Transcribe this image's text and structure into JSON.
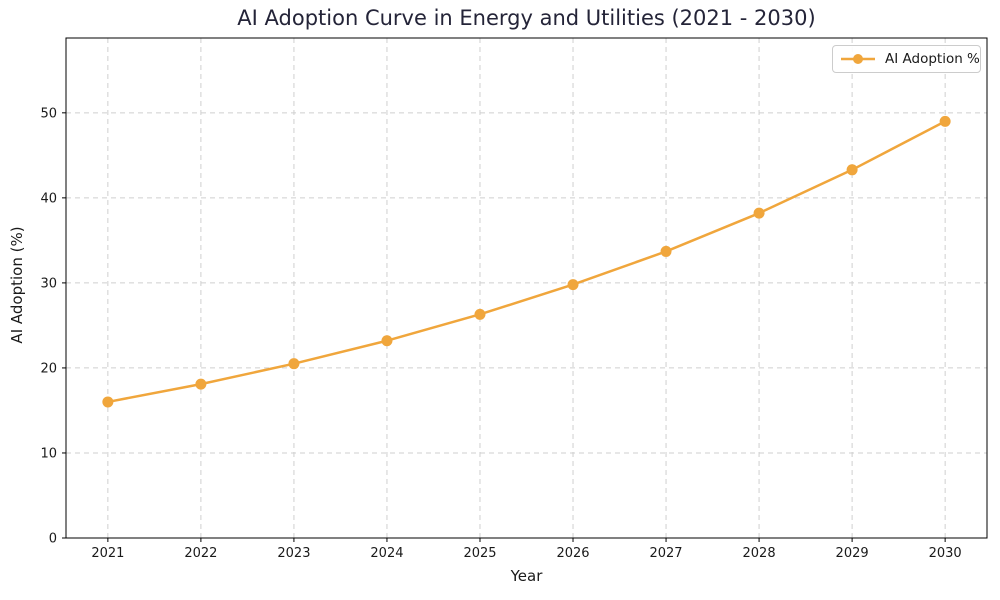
{
  "chart_data": {
    "type": "line",
    "title": "AI Adoption Curve in Energy and Utilities (2021 - 2030)",
    "xlabel": "Year",
    "ylabel": "AI Adoption (%)",
    "categories": [
      "2021",
      "2022",
      "2023",
      "2024",
      "2025",
      "2026",
      "2027",
      "2028",
      "2029",
      "2030"
    ],
    "series": [
      {
        "name": "AI Adoption %",
        "color": "#f0a63c",
        "marker": "circle",
        "values": [
          16.0,
          18.1,
          20.5,
          23.2,
          26.3,
          29.8,
          33.7,
          38.2,
          43.3,
          49.0
        ]
      }
    ],
    "ylim": [
      0,
      58.8
    ],
    "yticks": [
      0,
      10,
      20,
      30,
      40,
      50
    ],
    "grid": true,
    "grid_color": "#cfcfcf",
    "grid_style": "dashed",
    "legend_position": "upper-right",
    "title_color": "#242438",
    "axis_color": "#000000",
    "text_color": "#1a1a1a"
  }
}
